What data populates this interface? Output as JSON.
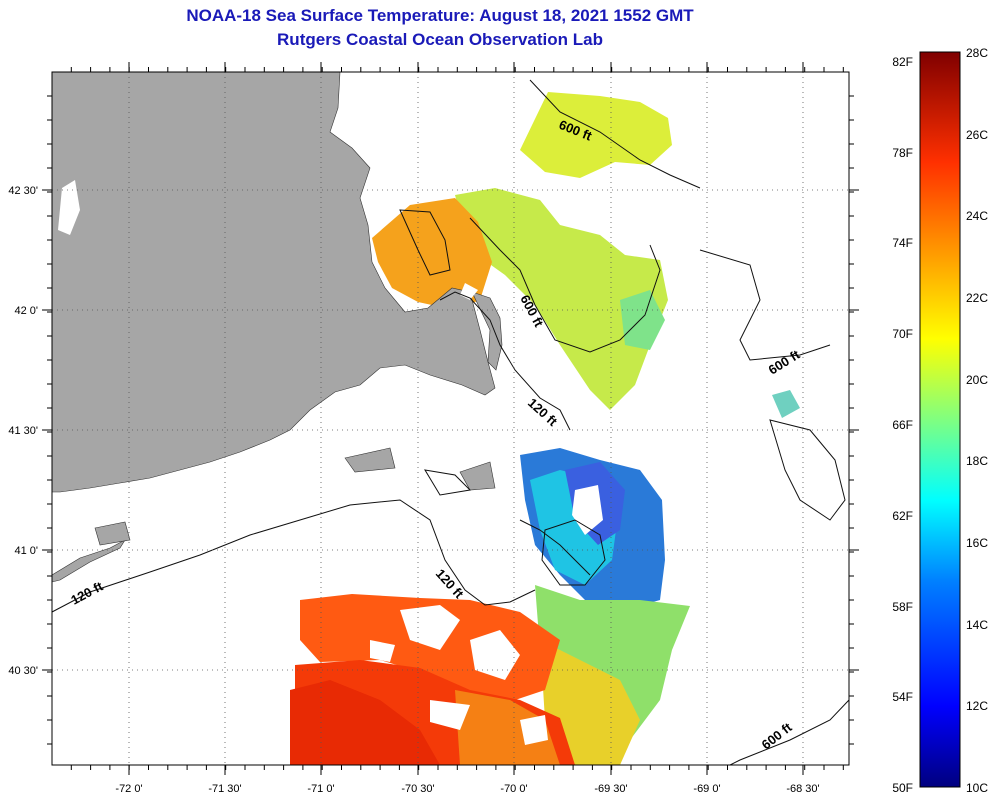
{
  "title": "NOAA-18 Sea Surface Temperature:  August 18, 2021 1552 GMT",
  "subtitle": "Rutgers Coastal Ocean Observation Lab",
  "x_tick_labels": [
    "-72 0'",
    "-71 30'",
    "-71 0'",
    "-70 30'",
    "-70 0'",
    "-69 30'",
    "-69 0'",
    "-68 30'"
  ],
  "y_tick_labels": [
    "42 30'",
    "42 0'",
    "41 30'",
    "41 0'",
    "40 30'"
  ],
  "contour_labels": [
    "600 ft",
    "600 ft",
    "600 ft",
    "600 ft",
    "120 ft",
    "120 ft",
    "120 ft"
  ],
  "colorbar": {
    "fahrenheit_labels": [
      "82F",
      "78F",
      "74F",
      "70F",
      "66F",
      "62F",
      "58F",
      "54F",
      "50F"
    ],
    "celsius_labels": [
      "28C",
      "26C",
      "24C",
      "22C",
      "20C",
      "18C",
      "16C",
      "14C",
      "12C",
      "10C"
    ],
    "range_c": [
      10,
      28
    ],
    "range_f": [
      50,
      82
    ],
    "colors": [
      "#00007f",
      "#0000ff",
      "#0080ff",
      "#00ffff",
      "#80ff80",
      "#ffff00",
      "#ff8000",
      "#ff0000",
      "#800000"
    ]
  },
  "colors": {
    "land": "#a6a6a6",
    "title": "#1a1ab8",
    "no_data": "#ffffff"
  }
}
